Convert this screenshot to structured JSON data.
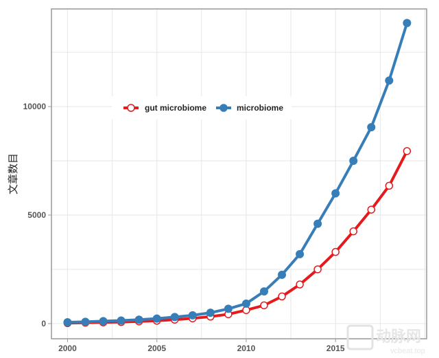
{
  "chart_data": {
    "type": "line",
    "title": "",
    "xlabel": "",
    "ylabel": "文章数目",
    "x": [
      2000,
      2001,
      2002,
      2003,
      2004,
      2005,
      2006,
      2007,
      2008,
      2009,
      2010,
      2011,
      2012,
      2013,
      2014,
      2015,
      2016,
      2017,
      2018,
      2019
    ],
    "xlim": [
      1999.1,
      2020.1
    ],
    "ylim": [
      -700,
      14500
    ],
    "xticks": [
      "2000",
      "2005",
      "2010",
      "2015"
    ],
    "yticks": [
      "0",
      "5000",
      "10000"
    ],
    "grid": true,
    "legend_position": "upper-left",
    "series": [
      {
        "name": "gut microbiome",
        "color": "#e41a1c",
        "marker": "hollow-circle",
        "values": [
          20,
          40,
          55,
          70,
          100,
          130,
          180,
          240,
          320,
          430,
          620,
          840,
          1250,
          1800,
          2500,
          3300,
          4250,
          5250,
          6350,
          7950
        ]
      },
      {
        "name": "microbiome",
        "color": "#377eb8",
        "marker": "filled-circle",
        "values": [
          60,
          80,
          110,
          140,
          180,
          230,
          300,
          380,
          500,
          680,
          920,
          1480,
          2250,
          3200,
          4600,
          6000,
          7500,
          9050,
          11200,
          13850
        ]
      }
    ]
  },
  "watermark": {
    "logo_text": "动脉网",
    "site": "vcbeat.top"
  }
}
